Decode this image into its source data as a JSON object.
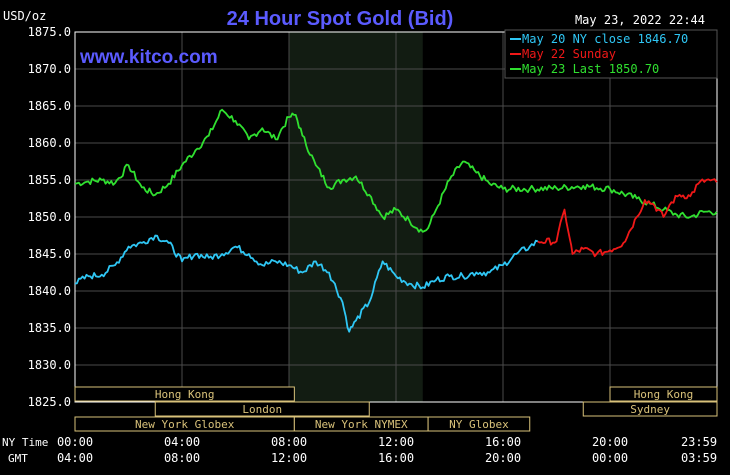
{
  "chart_data": {
    "type": "line",
    "title": "24 Hour Spot Gold (Bid)",
    "ylabel": "USD/oz",
    "watermark": "www.kitco.com",
    "timestamp": "May 23, 2022 22:44",
    "ylim": [
      1825,
      1875
    ],
    "y_ticks": [
      "1875.0",
      "1870.0",
      "1865.0",
      "1860.0",
      "1855.0",
      "1850.0",
      "1845.0",
      "1840.0",
      "1835.0",
      "1830.0",
      "1825.0"
    ],
    "grid": true,
    "legend_position": "top-right",
    "legend": [
      {
        "label": "May 20 NY close 1846.70",
        "color": "#2fc7f5"
      },
      {
        "label": "May 22 Sunday",
        "color": "#f01818"
      },
      {
        "label": "May 23 Last 1850.70",
        "color": "#30e030"
      }
    ],
    "x_axis": {
      "ny_time_label": "NY Time",
      "gmt_label": "GMT",
      "ny_ticks": [
        "00:00",
        "04:00",
        "08:00",
        "12:00",
        "16:00",
        "20:00",
        "23:59"
      ],
      "gmt_ticks": [
        "04:00",
        "08:00",
        "12:00",
        "16:00",
        "20:00",
        "00:00",
        "03:59"
      ]
    },
    "sessions": [
      {
        "label": "Hong Kong",
        "row": 0
      },
      {
        "label": "Hong Kong",
        "row": 0
      },
      {
        "label": "London",
        "row": 1
      },
      {
        "label": "Sydney",
        "row": 1
      },
      {
        "label": "New York Globex",
        "row": 2
      },
      {
        "label": "New York NYMEX",
        "row": 2
      },
      {
        "label": "NY Globex",
        "row": 2
      }
    ],
    "series": [
      {
        "name": "May 23",
        "color": "#30e030",
        "x": [
          0,
          0.5,
          1,
          1.5,
          2,
          2.5,
          3,
          3.5,
          4,
          4.5,
          5,
          5.5,
          6,
          6.5,
          7,
          7.5,
          8,
          8.25,
          8.5,
          9,
          9.5,
          10,
          10.5,
          11,
          11.5,
          12,
          12.5,
          13,
          13.2,
          13.5,
          14,
          14.5,
          15,
          15.5,
          16,
          17,
          18,
          19,
          20,
          21,
          21.5,
          22,
          22.5,
          23,
          23.5,
          23.99
        ],
        "values": [
          1854.5,
          1854.8,
          1855.0,
          1854.6,
          1857.0,
          1854.0,
          1853.0,
          1854.5,
          1857.0,
          1859.0,
          1861.0,
          1864.5,
          1863.0,
          1860.5,
          1862.0,
          1860.5,
          1863.5,
          1863.8,
          1861.0,
          1857.0,
          1854.0,
          1855.0,
          1855.5,
          1853.0,
          1850.0,
          1851.0,
          1849.5,
          1848.0,
          1848.5,
          1851.0,
          1855.0,
          1857.5,
          1856.0,
          1854.5,
          1853.8,
          1853.8,
          1853.9,
          1854.2,
          1853.8,
          1852.5,
          1851.8,
          1851.0,
          1850.3,
          1850.0,
          1850.7,
          1850.7
        ]
      },
      {
        "name": "May 20",
        "color": "#2fc7f5",
        "x": [
          0,
          0.5,
          1,
          1.5,
          2,
          2.5,
          3,
          3.5,
          4,
          4.5,
          5,
          5.5,
          6,
          6.5,
          7,
          7.5,
          8,
          8.5,
          9,
          9.5,
          10,
          10.25,
          10.5,
          11,
          11.5,
          12,
          12.5,
          13,
          13.5,
          14,
          14.5,
          15,
          15.5,
          16,
          16.5,
          17,
          17.3
        ],
        "values": [
          1841.0,
          1842.0,
          1842.2,
          1843.5,
          1846.0,
          1846.5,
          1847.5,
          1846.5,
          1844.0,
          1845.0,
          1844.5,
          1845.0,
          1846.0,
          1845.0,
          1843.5,
          1844.0,
          1843.5,
          1842.5,
          1844.0,
          1842.5,
          1838.5,
          1834.5,
          1836.0,
          1838.5,
          1844.0,
          1842.0,
          1841.0,
          1840.5,
          1841.5,
          1842.0,
          1842.0,
          1842.5,
          1842.5,
          1843.5,
          1845.0,
          1846.0,
          1846.7
        ]
      },
      {
        "name": "May 22",
        "color": "#f01818",
        "x": [
          17.3,
          18.0,
          18.3,
          18.5,
          18.6,
          19,
          19.5,
          20,
          20.5,
          21,
          21.3,
          21.6,
          22,
          22.3,
          22.6,
          23,
          23.3,
          23.6,
          23.99
        ],
        "values": [
          1846.7,
          1846.7,
          1851.0,
          1847.0,
          1845.0,
          1845.7,
          1845.0,
          1845.5,
          1846.5,
          1850.0,
          1852.3,
          1851.8,
          1850.0,
          1852.0,
          1853.0,
          1852.8,
          1854.5,
          1855.0,
          1854.7
        ]
      }
    ]
  }
}
